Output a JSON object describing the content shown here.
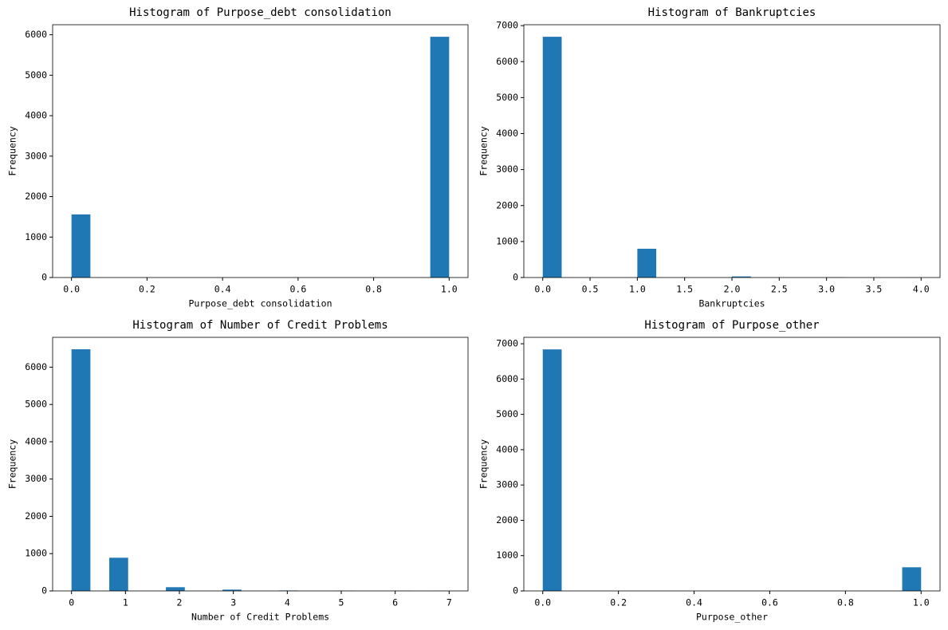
{
  "chart_data": [
    {
      "type": "histogram",
      "title": "Histogram of Purpose_debt consolidation",
      "xlabel": "Purpose_debt consolidation",
      "ylabel": "Frequency",
      "bins": [
        0,
        0.05,
        0.1,
        0.15,
        0.2,
        0.25,
        0.3,
        0.35,
        0.4,
        0.45,
        0.5,
        0.55,
        0.6,
        0.65,
        0.7,
        0.75,
        0.8,
        0.85,
        0.9,
        0.95,
        1.0
      ],
      "values": [
        1560,
        0,
        0,
        0,
        0,
        0,
        0,
        0,
        0,
        0,
        0,
        0,
        0,
        0,
        0,
        0,
        0,
        0,
        0,
        5950
      ],
      "color": "#1f77b4",
      "xlim": [
        -0.05,
        1.05
      ],
      "ylim": [
        0,
        6248
      ],
      "xticks": [
        {
          "value": 0,
          "label": "0.0"
        },
        0.2,
        0.4,
        0.6,
        0.8,
        {
          "value": 1,
          "label": "1.0"
        }
      ],
      "yticks": [
        0,
        1000,
        2000,
        3000,
        4000,
        5000,
        6000
      ]
    },
    {
      "type": "histogram",
      "title": "Histogram of Bankruptcies",
      "xlabel": "Bankruptcies",
      "ylabel": "Frequency",
      "bins": [
        0,
        0.2,
        0.4,
        0.6,
        0.8,
        1.0,
        1.2,
        1.4,
        1.6,
        1.8,
        2.0,
        2.2,
        2.4,
        2.6,
        2.8,
        3.0,
        3.2,
        3.4,
        3.6,
        3.8,
        4.0
      ],
      "values": [
        6690,
        0,
        0,
        0,
        0,
        800,
        0,
        0,
        0,
        0,
        30,
        0,
        0,
        0,
        0,
        7,
        0,
        0,
        0,
        2
      ],
      "color": "#1f77b4",
      "xlim": [
        -0.2,
        4.2
      ],
      "ylim": [
        0,
        7025
      ],
      "xticks": [
        {
          "value": 0,
          "label": "0.0"
        },
        0.5,
        {
          "value": 1,
          "label": "1.0"
        },
        1.5,
        {
          "value": 2,
          "label": "2.0"
        },
        2.5,
        {
          "value": 3,
          "label": "3.0"
        },
        3.5,
        {
          "value": 4,
          "label": "4.0"
        }
      ],
      "yticks": [
        0,
        1000,
        2000,
        3000,
        4000,
        5000,
        6000,
        7000
      ]
    },
    {
      "type": "histogram",
      "title": "Histogram of Number of Credit Problems",
      "xlabel": "Number of Credit Problems",
      "ylabel": "Frequency",
      "bins": [
        0,
        0.35,
        0.7,
        1.05,
        1.4,
        1.75,
        2.1,
        2.45,
        2.8,
        3.15,
        3.5,
        3.85,
        4.2,
        4.55,
        4.9,
        5.25,
        5.6,
        5.95,
        6.3,
        6.65,
        7
      ],
      "values": [
        6480,
        0,
        890,
        0,
        0,
        100,
        0,
        0,
        35,
        0,
        0,
        12,
        0,
        0,
        5,
        0,
        0,
        5,
        0,
        2
      ],
      "color": "#1f77b4",
      "xlim": [
        -0.35,
        7.35
      ],
      "ylim": [
        0,
        6800
      ],
      "xticks": [
        0,
        1,
        2,
        3,
        4,
        5,
        6,
        7
      ],
      "yticks": [
        0,
        1000,
        2000,
        3000,
        4000,
        5000,
        6000
      ]
    },
    {
      "type": "histogram",
      "title": "Histogram of Purpose_other",
      "xlabel": "Purpose_other",
      "ylabel": "Frequency",
      "bins": [
        0,
        0.05,
        0.1,
        0.15,
        0.2,
        0.25,
        0.3,
        0.35,
        0.4,
        0.45,
        0.5,
        0.55,
        0.6,
        0.65,
        0.7,
        0.75,
        0.8,
        0.85,
        0.9,
        0.95,
        1.0
      ],
      "values": [
        6840,
        0,
        0,
        0,
        0,
        0,
        0,
        0,
        0,
        0,
        0,
        0,
        0,
        0,
        0,
        0,
        0,
        0,
        0,
        670
      ],
      "color": "#1f77b4",
      "xlim": [
        -0.05,
        1.05
      ],
      "ylim": [
        0,
        7182
      ],
      "xticks": [
        {
          "value": 0,
          "label": "0.0"
        },
        0.2,
        0.4,
        0.6,
        0.8,
        {
          "value": 1,
          "label": "1.0"
        }
      ],
      "yticks": [
        0,
        1000,
        2000,
        3000,
        4000,
        5000,
        6000,
        7000
      ]
    }
  ]
}
